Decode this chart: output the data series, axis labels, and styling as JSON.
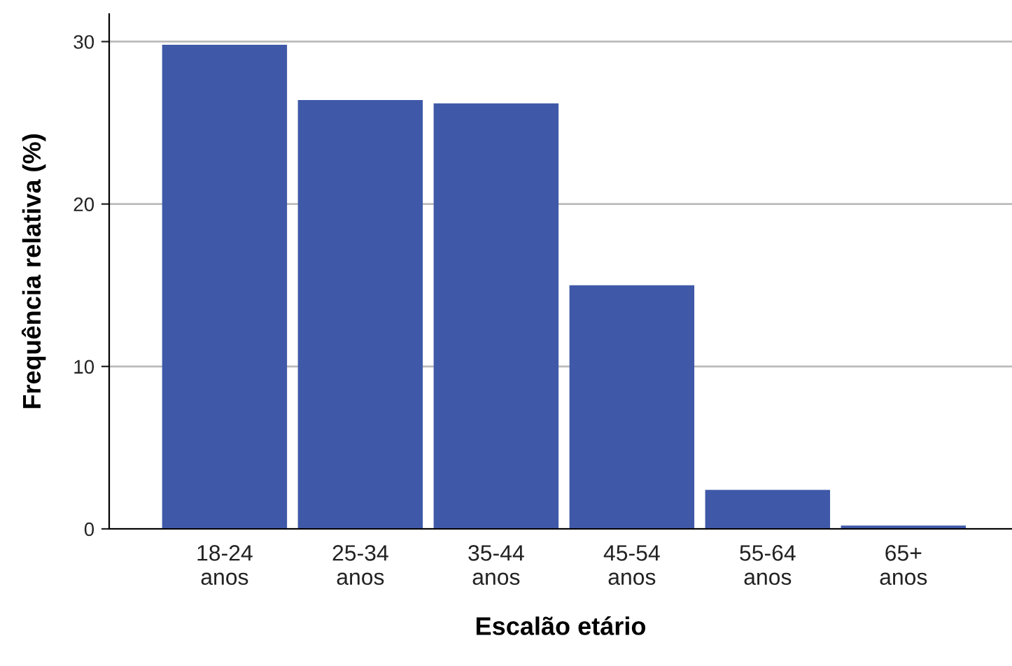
{
  "chart_data": {
    "type": "bar",
    "xlabel": "Escalão etário",
    "ylabel": "Frequência relativa (%)",
    "categories": [
      "18-24\nanos",
      "25-34\nanos",
      "35-44\nanos",
      "45-54\nanos",
      "55-64\nanos",
      "65+\nanos"
    ],
    "values": [
      29.8,
      26.4,
      26.2,
      15.0,
      2.4,
      0.2
    ],
    "color": "#3f59a8",
    "ylim": [
      0,
      31.7
    ],
    "yticks": [
      0,
      10,
      20,
      30
    ],
    "grid": "y"
  }
}
